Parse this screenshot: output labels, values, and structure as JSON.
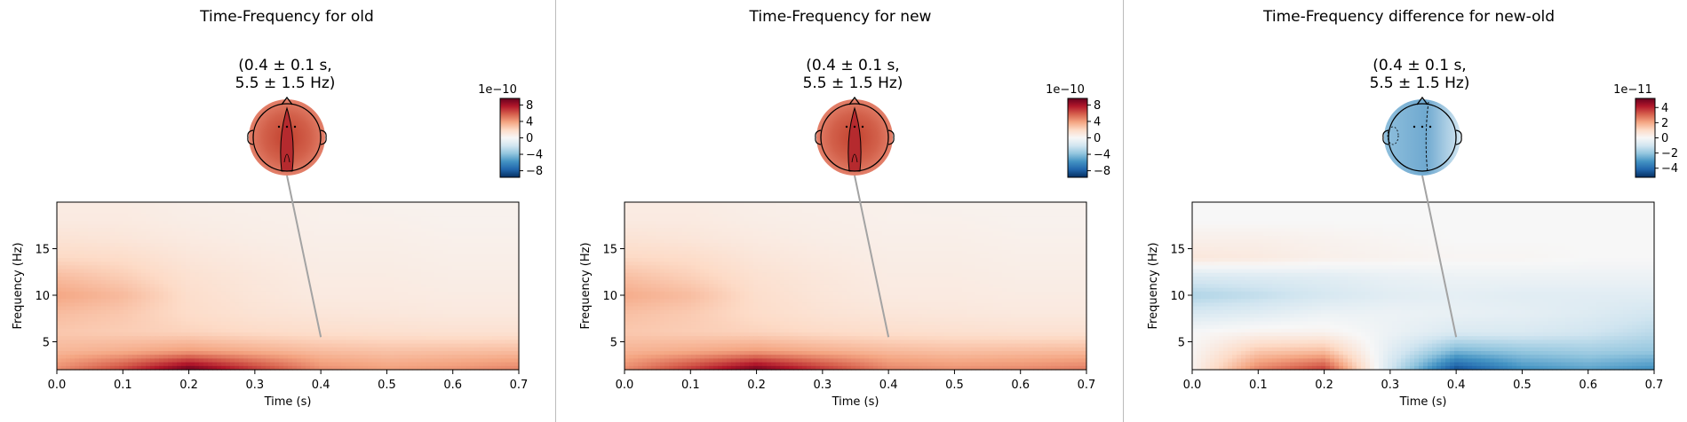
{
  "figure": {
    "panels": [
      {
        "id": "old",
        "title": "Time-Frequency for old",
        "topo_title_line1": "(0.4 ± 0.1 s,",
        "topo_title_line2": "5.5 ± 1.5 Hz)",
        "colorbar": {
          "exponent": "1e−10",
          "ticks": [
            "8",
            "4",
            "0",
            "−4",
            "−8"
          ],
          "tick_values": [
            8,
            4,
            0,
            -4,
            -8
          ],
          "range": [
            -9.6,
            9.6
          ]
        },
        "topomap": {
          "style": "positive"
        }
      },
      {
        "id": "new",
        "title": "Time-Frequency for new",
        "topo_title_line1": "(0.4 ± 0.1 s,",
        "topo_title_line2": "5.5 ± 1.5 Hz)",
        "colorbar": {
          "exponent": "1e−10",
          "ticks": [
            "8",
            "4",
            "0",
            "−4",
            "−8"
          ],
          "tick_values": [
            8,
            4,
            0,
            -4,
            -8
          ],
          "range": [
            -9.6,
            9.6
          ]
        },
        "topomap": {
          "style": "positive"
        }
      },
      {
        "id": "diff",
        "title": "Time-Frequency difference for new-old",
        "topo_title_line1": "(0.4 ± 0.1 s,",
        "topo_title_line2": "5.5 ± 1.5 Hz)",
        "colorbar": {
          "exponent": "1e−11",
          "ticks": [
            "4",
            "2",
            "0",
            "−2",
            "−4"
          ],
          "tick_values": [
            4,
            2,
            0,
            -2,
            -4
          ],
          "range": [
            -5.2,
            5.2
          ]
        },
        "topomap": {
          "style": "negative"
        }
      }
    ]
  },
  "chart_data": [
    {
      "type": "heatmap",
      "title": "Time-Frequency for old",
      "xlabel": "Time (s)",
      "ylabel": "Frequency (Hz)",
      "xlim": [
        0.0,
        0.7
      ],
      "ylim": [
        2,
        20
      ],
      "xticks": [
        "0.0",
        "0.1",
        "0.2",
        "0.3",
        "0.4",
        "0.5",
        "0.6",
        "0.7"
      ],
      "xtick_values": [
        0.0,
        0.1,
        0.2,
        0.3,
        0.4,
        0.5,
        0.6,
        0.7
      ],
      "yticks": [
        "5",
        "10",
        "15"
      ],
      "ytick_values": [
        5,
        10,
        15
      ],
      "colormap": "RdBu_r",
      "clim": [
        -9.6,
        9.6
      ],
      "annotation": {
        "time": 0.4,
        "freq": 5.5
      },
      "times": [
        0.0,
        0.1,
        0.2,
        0.3,
        0.4,
        0.5,
        0.6,
        0.7
      ],
      "freqs": [
        2,
        4,
        6,
        8,
        10,
        12,
        14,
        16,
        18,
        20
      ],
      "values": [
        [
          4.5,
          6.5,
          9.5,
          6.8,
          4.5,
          4.0,
          4.3,
          4.8
        ],
        [
          3.2,
          3.5,
          4.0,
          3.5,
          3.0,
          2.8,
          2.9,
          3.0
        ],
        [
          2.6,
          2.4,
          2.2,
          1.9,
          1.7,
          1.6,
          1.5,
          1.5
        ],
        [
          3.0,
          2.6,
          1.8,
          1.4,
          1.2,
          1.1,
          1.0,
          1.0
        ],
        [
          3.8,
          3.1,
          1.7,
          1.2,
          0.9,
          0.9,
          0.8,
          0.8
        ],
        [
          3.0,
          2.4,
          1.5,
          1.1,
          0.8,
          0.8,
          0.7,
          0.7
        ],
        [
          2.0,
          1.8,
          1.2,
          0.9,
          0.7,
          0.7,
          0.6,
          0.6
        ],
        [
          1.4,
          1.2,
          0.9,
          0.7,
          0.6,
          0.6,
          0.5,
          0.5
        ],
        [
          0.9,
          0.9,
          0.7,
          0.6,
          0.5,
          0.5,
          0.4,
          0.4
        ],
        [
          0.8,
          0.8,
          0.6,
          0.5,
          0.5,
          0.4,
          0.4,
          0.4
        ]
      ]
    },
    {
      "type": "heatmap",
      "title": "Time-Frequency for new",
      "xlabel": "Time (s)",
      "ylabel": "Frequency (Hz)",
      "xlim": [
        0.0,
        0.7
      ],
      "ylim": [
        2,
        20
      ],
      "xticks": [
        "0.0",
        "0.1",
        "0.2",
        "0.3",
        "0.4",
        "0.5",
        "0.6",
        "0.7"
      ],
      "xtick_values": [
        0.0,
        0.1,
        0.2,
        0.3,
        0.4,
        0.5,
        0.6,
        0.7
      ],
      "yticks": [
        "5",
        "10",
        "15"
      ],
      "ytick_values": [
        5,
        10,
        15
      ],
      "colormap": "RdBu_r",
      "clim": [
        -9.6,
        9.6
      ],
      "annotation": {
        "time": 0.4,
        "freq": 5.5
      },
      "times": [
        0.0,
        0.1,
        0.2,
        0.3,
        0.4,
        0.5,
        0.6,
        0.7
      ],
      "freqs": [
        2,
        4,
        6,
        8,
        10,
        12,
        14,
        16,
        18,
        20
      ],
      "values": [
        [
          4.6,
          6.8,
          9.3,
          6.9,
          4.8,
          4.4,
          4.6,
          5.0
        ],
        [
          3.3,
          3.6,
          4.0,
          3.5,
          3.1,
          2.9,
          3.0,
          3.1
        ],
        [
          2.6,
          2.4,
          2.2,
          1.9,
          1.7,
          1.6,
          1.5,
          1.5
        ],
        [
          2.9,
          2.5,
          1.8,
          1.4,
          1.2,
          1.1,
          1.0,
          1.0
        ],
        [
          3.6,
          3.0,
          1.7,
          1.2,
          0.9,
          0.9,
          0.8,
          0.8
        ],
        [
          2.9,
          2.3,
          1.5,
          1.1,
          0.8,
          0.8,
          0.7,
          0.7
        ],
        [
          2.0,
          1.8,
          1.2,
          0.9,
          0.7,
          0.7,
          0.6,
          0.6
        ],
        [
          1.4,
          1.2,
          0.9,
          0.7,
          0.6,
          0.6,
          0.5,
          0.5
        ],
        [
          0.9,
          0.9,
          0.7,
          0.6,
          0.5,
          0.5,
          0.4,
          0.4
        ],
        [
          0.8,
          0.8,
          0.6,
          0.5,
          0.5,
          0.4,
          0.4,
          0.4
        ]
      ]
    },
    {
      "type": "heatmap",
      "title": "Time-Frequency difference for new-old",
      "xlabel": "Time (s)",
      "ylabel": "Frequency (Hz)",
      "xlim": [
        0.0,
        0.7
      ],
      "ylim": [
        2,
        20
      ],
      "xticks": [
        "0.0",
        "0.1",
        "0.2",
        "0.3",
        "0.4",
        "0.5",
        "0.6",
        "0.7"
      ],
      "xtick_values": [
        0.0,
        0.1,
        0.2,
        0.3,
        0.4,
        0.5,
        0.6,
        0.7
      ],
      "yticks": [
        "5",
        "10",
        "15"
      ],
      "ytick_values": [
        5,
        10,
        15
      ],
      "colormap": "RdBu_r",
      "clim": [
        -5.2,
        5.2
      ],
      "annotation": {
        "time": 0.4,
        "freq": 5.5
      },
      "times": [
        0.0,
        0.1,
        0.2,
        0.3,
        0.4,
        0.5,
        0.6,
        0.7
      ],
      "freqs": [
        2,
        4,
        6,
        8,
        10,
        12,
        14,
        16,
        18,
        20
      ],
      "values": [
        [
          0.2,
          2.6,
          3.6,
          -1.0,
          -4.6,
          -3.2,
          -2.8,
          -3.2
        ],
        [
          0.1,
          1.4,
          1.6,
          -0.6,
          -2.4,
          -2.0,
          -1.8,
          -2.0
        ],
        [
          0.0,
          0.2,
          0.2,
          -0.3,
          -0.8,
          -0.8,
          -1.0,
          -1.4
        ],
        [
          -0.8,
          -0.6,
          -0.3,
          -0.3,
          -0.4,
          -0.5,
          -0.7,
          -1.0
        ],
        [
          -1.6,
          -1.3,
          -0.9,
          -0.6,
          -0.5,
          -0.6,
          -0.6,
          -0.6
        ],
        [
          -0.8,
          -0.7,
          -0.6,
          -0.4,
          -0.3,
          -0.3,
          -0.3,
          -0.3
        ],
        [
          0.6,
          0.5,
          0.3,
          0.2,
          0.1,
          0.1,
          0.0,
          0.0
        ],
        [
          0.3,
          0.3,
          0.2,
          0.1,
          0.0,
          0.0,
          0.0,
          0.0
        ],
        [
          0.0,
          0.0,
          0.0,
          0.0,
          0.0,
          0.0,
          0.0,
          0.0
        ],
        [
          0.0,
          0.0,
          0.0,
          0.0,
          0.0,
          0.0,
          0.0,
          0.0
        ]
      ]
    }
  ]
}
